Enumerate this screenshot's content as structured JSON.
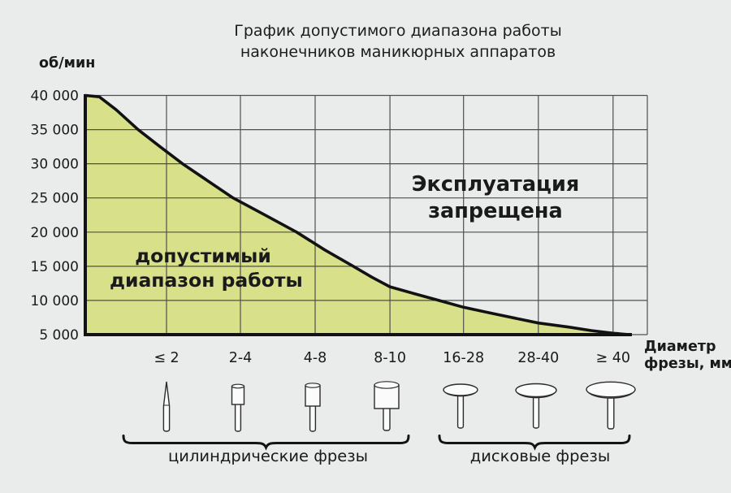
{
  "title": {
    "line1": "График допустимого диапазона работы",
    "line2": "наконечников маникюрных аппаратов"
  },
  "y_axis": {
    "unit_label": "об/мин",
    "ticks": [
      "40 000",
      "35 000",
      "30 000",
      "25 000",
      "20 000",
      "15 000",
      "10 000",
      "5 000"
    ]
  },
  "x_axis": {
    "label_line1": "Диаметр",
    "label_line2": "фрезы, мм",
    "categories": [
      "≤ 2",
      "2-4",
      "4-8",
      "8-10",
      "16-28",
      "28-40",
      "≥ 40"
    ]
  },
  "annotations": {
    "allowed_line1": "допустимый",
    "allowed_line2": "диапазон работы",
    "forbidden_line1": "Эксплуатация",
    "forbidden_line2": "запрещена"
  },
  "groups": {
    "cylindrical_label": "цилиндрические фрезы",
    "disc_label": "дисковые фрезы"
  },
  "bit_icons": [
    "needle-bur-icon",
    "small-cylinder-bur-icon",
    "medium-cylinder-bur-icon",
    "large-cylinder-bur-icon",
    "small-disc-bur-icon",
    "medium-disc-bur-icon",
    "large-disc-bur-icon"
  ],
  "colors": {
    "background": "#eaebeb",
    "allowed_fill": "#d9e08a",
    "grid": "#4f4f4f",
    "line": "#121212",
    "text": "#1a1a1a"
  },
  "chart_data": {
    "type": "area",
    "title": "График допустимого диапазона работы наконечников маникюрных аппаратов",
    "ylabel": "об/мин",
    "xlabel": "Диаметр фрезы, мм",
    "ylim": [
      5000,
      40000
    ],
    "y_ticks": [
      40000,
      35000,
      30000,
      25000,
      20000,
      15000,
      10000,
      5000
    ],
    "categories": [
      "≤ 2",
      "2-4",
      "4-8",
      "8-10",
      "16-28",
      "28-40",
      "≥ 40"
    ],
    "boundary_rpm_at_categories": [
      32000,
      25000,
      17500,
      12000,
      9000,
      6700,
      5200
    ],
    "curve_points": [
      [
        0.0,
        40000
      ],
      [
        0.025,
        39800
      ],
      [
        0.055,
        37900
      ],
      [
        0.094,
        35000
      ],
      [
        0.133,
        32500
      ],
      [
        0.173,
        30000
      ],
      [
        0.218,
        27500
      ],
      [
        0.263,
        25000
      ],
      [
        0.32,
        22500
      ],
      [
        0.376,
        20000
      ],
      [
        0.426,
        17400
      ],
      [
        0.477,
        15000
      ],
      [
        0.51,
        13400
      ],
      [
        0.542,
        12000
      ],
      [
        0.585,
        11000
      ],
      [
        0.629,
        10000
      ],
      [
        0.673,
        9000
      ],
      [
        0.73,
        8000
      ],
      [
        0.806,
        6700
      ],
      [
        0.86,
        6100
      ],
      [
        0.9,
        5600
      ],
      [
        0.939,
        5200
      ],
      [
        0.968,
        5000
      ]
    ],
    "regions": [
      {
        "label": "допустимый диапазон работы",
        "position": "below curve"
      },
      {
        "label": "Эксплуатация запрещена",
        "position": "above curve"
      }
    ],
    "groups": [
      {
        "label": "цилиндрические фрезы",
        "categories": [
          "≤ 2",
          "2-4",
          "4-8",
          "8-10"
        ]
      },
      {
        "label": "дисковые фрезы",
        "categories": [
          "16-28",
          "28-40",
          "≥ 40"
        ]
      }
    ],
    "grid": true,
    "legend": false
  }
}
